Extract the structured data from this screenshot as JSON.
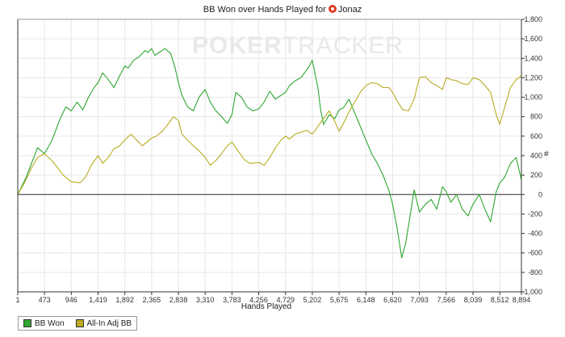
{
  "chart_data": {
    "type": "line",
    "title_prefix": "BB Won over Hands Played for",
    "player": "Jonaz",
    "xlabel": "Hands Played",
    "ylabel": "#",
    "x_ticks": [
      1,
      473,
      946,
      1419,
      1892,
      2365,
      2838,
      3310,
      3783,
      4256,
      4729,
      5202,
      5675,
      6148,
      6620,
      7093,
      7566,
      8039,
      8512,
      8894
    ],
    "x_tick_labels": [
      "1",
      "473",
      "946",
      "1,419",
      "1,892",
      "2,365",
      "2,838",
      "3,310",
      "3,783",
      "4,256",
      "4,729",
      "5,202",
      "5,675",
      "6,148",
      "6,620",
      "7,093",
      "7,566",
      "8,039",
      "8,512",
      "8,894"
    ],
    "xlim": [
      1,
      8894
    ],
    "y_ticks": [
      -1000,
      -800,
      -600,
      -400,
      -200,
      0,
      200,
      400,
      600,
      800,
      1000,
      1200,
      1400,
      1600,
      1800
    ],
    "y_tick_labels": [
      "-1,000",
      "-800",
      "-600",
      "-400",
      "-200",
      "0",
      "200",
      "400",
      "600",
      "800",
      "1,000",
      "1,200",
      "1,400",
      "1,600",
      "1,800"
    ],
    "ylim": [
      -1000,
      1800
    ],
    "y_axis_side": "right",
    "grid": true,
    "legend_position": "bottom-left",
    "watermark": {
      "bold": "POKER",
      "light": "TRACKER"
    },
    "series": [
      {
        "name": "BB Won",
        "color": "#2fa630",
        "x": [
          1,
          150,
          250,
          350,
          473,
          600,
          750,
          850,
          946,
          1050,
          1150,
          1250,
          1350,
          1419,
          1500,
          1600,
          1700,
          1800,
          1892,
          1950,
          2050,
          2150,
          2250,
          2300,
          2365,
          2420,
          2500,
          2600,
          2700,
          2780,
          2838,
          2900,
          3000,
          3100,
          3200,
          3310,
          3400,
          3500,
          3600,
          3700,
          3783,
          3850,
          3950,
          4050,
          4150,
          4256,
          4350,
          4450,
          4550,
          4650,
          4729,
          4800,
          4900,
          5000,
          5100,
          5150,
          5202,
          5300,
          5350,
          5400,
          5500,
          5600,
          5675,
          5750,
          5850,
          5950,
          6050,
          6148,
          6250,
          6350,
          6450,
          6550,
          6620,
          6700,
          6780,
          6850,
          6920,
          7000,
          7093,
          7200,
          7300,
          7400,
          7500,
          7566,
          7650,
          7750,
          7850,
          7950,
          8039,
          8150,
          8250,
          8350,
          8450,
          8512,
          8600,
          8700,
          8800,
          8894
        ],
        "y": [
          0,
          180,
          330,
          480,
          420,
          550,
          780,
          900,
          860,
          950,
          870,
          1000,
          1100,
          1150,
          1250,
          1180,
          1100,
          1220,
          1320,
          1300,
          1380,
          1420,
          1480,
          1460,
          1500,
          1430,
          1460,
          1500,
          1450,
          1300,
          1150,
          1020,
          900,
          860,
          1000,
          1080,
          950,
          860,
          800,
          730,
          820,
          1050,
          1000,
          900,
          860,
          880,
          950,
          1060,
          980,
          1020,
          1050,
          1120,
          1170,
          1200,
          1280,
          1320,
          1380,
          1100,
          870,
          720,
          820,
          780,
          870,
          890,
          980,
          840,
          700,
          560,
          420,
          320,
          200,
          50,
          -100,
          -350,
          -650,
          -500,
          -250,
          50,
          -180,
          -100,
          -50,
          -150,
          80,
          30,
          -80,
          0,
          -150,
          -220,
          -100,
          0,
          -150,
          -280,
          30,
          120,
          180,
          320,
          380,
          150
        ]
      },
      {
        "name": "All-In Adj BB",
        "color": "#b8ac22",
        "x": [
          1,
          120,
          250,
          350,
          473,
          600,
          700,
          800,
          946,
          1100,
          1200,
          1300,
          1419,
          1500,
          1600,
          1700,
          1800,
          1892,
          2000,
          2100,
          2200,
          2365,
          2450,
          2550,
          2650,
          2750,
          2838,
          2900,
          3000,
          3100,
          3200,
          3310,
          3400,
          3500,
          3600,
          3700,
          3783,
          3900,
          4000,
          4100,
          4256,
          4350,
          4450,
          4550,
          4650,
          4729,
          4800,
          4900,
          5000,
          5100,
          5202,
          5300,
          5400,
          5500,
          5600,
          5675,
          5750,
          5850,
          5950,
          6050,
          6148,
          6250,
          6350,
          6450,
          6550,
          6620,
          6700,
          6800,
          6900,
          7000,
          7093,
          7200,
          7300,
          7400,
          7500,
          7566,
          7650,
          7750,
          7850,
          7950,
          8039,
          8150,
          8250,
          8350,
          8450,
          8512,
          8600,
          8700,
          8800,
          8894
        ],
        "y": [
          0,
          120,
          280,
          380,
          420,
          350,
          280,
          200,
          130,
          120,
          180,
          300,
          400,
          320,
          380,
          470,
          500,
          560,
          620,
          560,
          500,
          580,
          600,
          650,
          720,
          800,
          760,
          620,
          560,
          500,
          450,
          380,
          300,
          350,
          420,
          500,
          540,
          440,
          360,
          320,
          330,
          300,
          380,
          480,
          560,
          600,
          570,
          620,
          640,
          660,
          620,
          700,
          780,
          860,
          750,
          650,
          730,
          850,
          950,
          1050,
          1120,
          1150,
          1140,
          1100,
          1100,
          1050,
          960,
          870,
          860,
          980,
          1200,
          1210,
          1150,
          1120,
          1080,
          1200,
          1180,
          1170,
          1140,
          1130,
          1200,
          1180,
          1120,
          1050,
          820,
          720,
          900,
          1100,
          1180,
          1220
        ]
      }
    ]
  }
}
